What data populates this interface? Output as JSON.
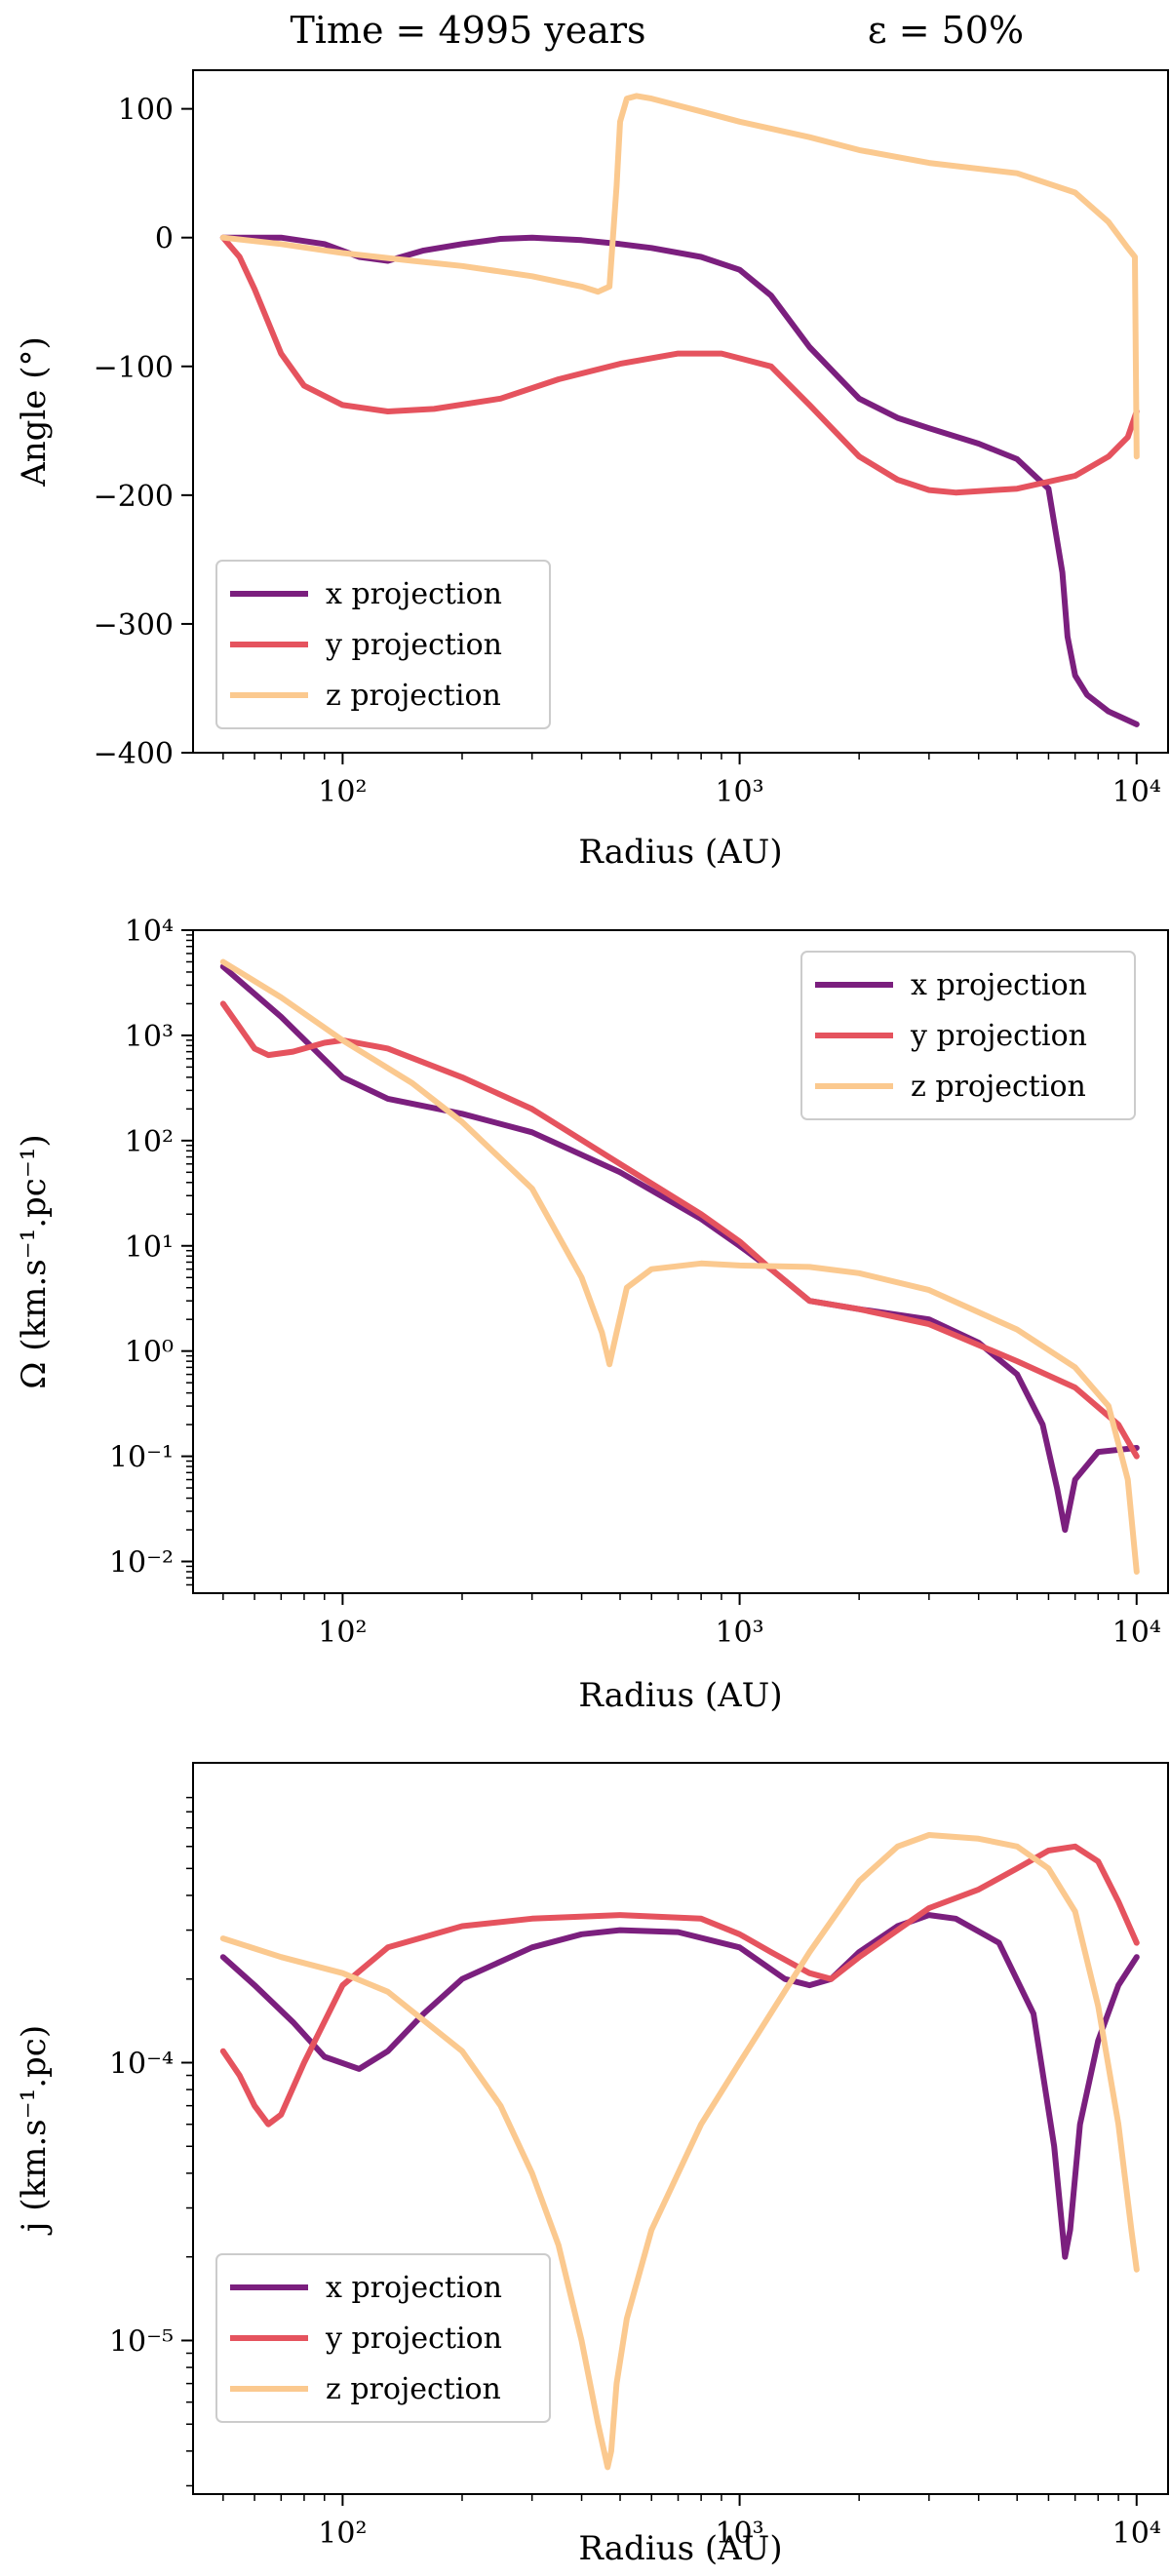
{
  "figure": {
    "title_left": "Time = 4995 years",
    "title_right": "ε = 50%"
  },
  "colors": {
    "x_projection": "#7b1f7e",
    "y_projection": "#e5535e",
    "z_projection": "#fbc98f",
    "axes": "#000000",
    "legend_border": "#cccccc"
  },
  "chart_data": [
    {
      "type": "line",
      "title": "Time = 4995 years    ε = 50%",
      "xlabel": "Radius (AU)",
      "ylabel": "Angle (°)",
      "xscale": "log",
      "yscale": "linear",
      "xlim": [
        42,
        12000
      ],
      "ylim": [
        -400,
        130
      ],
      "x_ticks": [
        {
          "value": 100,
          "label": "10²"
        },
        {
          "value": 1000,
          "label": "10³"
        },
        {
          "value": 10000,
          "label": "10⁴"
        }
      ],
      "y_ticks": [
        {
          "value": 100,
          "label": "100"
        },
        {
          "value": 0,
          "label": "0"
        },
        {
          "value": -100,
          "label": "−100"
        },
        {
          "value": -200,
          "label": "−200"
        },
        {
          "value": -300,
          "label": "−300"
        },
        {
          "value": -400,
          "label": "−400"
        }
      ],
      "legend_position": "lower-left",
      "series": [
        {
          "name": "x projection",
          "color_key": "x_projection",
          "x": [
            50,
            70,
            90,
            110,
            130,
            160,
            200,
            250,
            300,
            400,
            500,
            600,
            800,
            1000,
            1200,
            1500,
            2000,
            2500,
            3000,
            4000,
            5000,
            6000,
            6500,
            6700,
            7000,
            7500,
            8500,
            10000
          ],
          "y": [
            0,
            0,
            -5,
            -15,
            -18,
            -10,
            -5,
            -1,
            0,
            -2,
            -5,
            -8,
            -15,
            -25,
            -45,
            -85,
            -125,
            -140,
            -148,
            -160,
            -172,
            -195,
            -260,
            -310,
            -340,
            -355,
            -368,
            -378
          ]
        },
        {
          "name": "y projection",
          "color_key": "y_projection",
          "x": [
            50,
            55,
            60,
            70,
            80,
            100,
            130,
            170,
            250,
            350,
            500,
            700,
            900,
            1200,
            1500,
            2000,
            2500,
            3000,
            3500,
            5000,
            7000,
            8500,
            9500,
            10000
          ],
          "y": [
            0,
            -15,
            -40,
            -90,
            -115,
            -130,
            -135,
            -133,
            -125,
            -110,
            -98,
            -90,
            -90,
            -100,
            -130,
            -170,
            -188,
            -196,
            -198,
            -195,
            -185,
            -170,
            -155,
            -135
          ]
        },
        {
          "name": "z projection",
          "color_key": "z_projection",
          "x": [
            50,
            70,
            100,
            150,
            200,
            300,
            400,
            440,
            470,
            490,
            500,
            520,
            550,
            600,
            800,
            1000,
            1500,
            2000,
            3000,
            5000,
            7000,
            8500,
            9500,
            9900,
            10000
          ],
          "y": [
            0,
            -5,
            -12,
            -18,
            -22,
            -30,
            -38,
            -42,
            -38,
            40,
            90,
            108,
            110,
            108,
            98,
            90,
            78,
            68,
            58,
            50,
            35,
            12,
            -8,
            -15,
            -170
          ]
        }
      ]
    },
    {
      "type": "line",
      "xlabel": "Radius (AU)",
      "ylabel": "Ω (km.s⁻¹.pc⁻¹)",
      "xscale": "log",
      "yscale": "log",
      "xlim": [
        42,
        12000
      ],
      "ylim": [
        0.005,
        10000
      ],
      "x_ticks": [
        {
          "value": 100,
          "label": "10²"
        },
        {
          "value": 1000,
          "label": "10³"
        },
        {
          "value": 10000,
          "label": "10⁴"
        }
      ],
      "y_ticks": [
        {
          "value": 10000,
          "label": "10⁴"
        },
        {
          "value": 1000,
          "label": "10³"
        },
        {
          "value": 100,
          "label": "10²"
        },
        {
          "value": 10,
          "label": "10¹"
        },
        {
          "value": 1,
          "label": "10⁰"
        },
        {
          "value": 0.1,
          "label": "10⁻¹"
        },
        {
          "value": 0.01,
          "label": "10⁻²"
        }
      ],
      "legend_position": "upper-right",
      "series": [
        {
          "name": "x projection",
          "color_key": "x_projection",
          "x": [
            50,
            70,
            100,
            130,
            200,
            300,
            500,
            800,
            1000,
            1200,
            1500,
            2000,
            3000,
            4000,
            5000,
            5800,
            6300,
            6600,
            7000,
            8000,
            10000
          ],
          "y": [
            4500,
            1500,
            400,
            250,
            180,
            120,
            50,
            18,
            10,
            6,
            3,
            2.5,
            2,
            1.2,
            0.6,
            0.2,
            0.05,
            0.02,
            0.06,
            0.11,
            0.12
          ]
        },
        {
          "name": "y projection",
          "color_key": "y_projection",
          "x": [
            50,
            55,
            60,
            65,
            75,
            90,
            100,
            130,
            200,
            300,
            500,
            800,
            1000,
            1200,
            1500,
            2000,
            3000,
            5000,
            7000,
            9000,
            10000
          ],
          "y": [
            2000,
            1200,
            750,
            650,
            700,
            850,
            900,
            750,
            400,
            200,
            60,
            20,
            11,
            6,
            3,
            2.5,
            1.8,
            0.8,
            0.45,
            0.2,
            0.1
          ]
        },
        {
          "name": "z projection",
          "color_key": "z_projection",
          "x": [
            50,
            70,
            100,
            150,
            200,
            300,
            400,
            450,
            470,
            490,
            520,
            600,
            800,
            1000,
            1500,
            2000,
            3000,
            5000,
            7000,
            8500,
            9500,
            10000
          ],
          "y": [
            5000,
            2300,
            900,
            350,
            150,
            35,
            5,
            1.5,
            0.75,
            1.5,
            4,
            6,
            6.8,
            6.5,
            6.3,
            5.5,
            3.8,
            1.6,
            0.7,
            0.3,
            0.06,
            0.008
          ]
        }
      ]
    },
    {
      "type": "line",
      "xlabel": "Radius (AU)",
      "ylabel": "j (km.s⁻¹.pc)",
      "xscale": "log",
      "yscale": "log",
      "xlim": [
        42,
        12000
      ],
      "ylim": [
        2.8e-06,
        0.0012
      ],
      "x_ticks": [
        {
          "value": 100,
          "label": "10²"
        },
        {
          "value": 1000,
          "label": "10³"
        },
        {
          "value": 10000,
          "label": "10⁴"
        }
      ],
      "y_ticks": [
        {
          "value": 0.0001,
          "label": "10⁻⁴"
        },
        {
          "value": 1e-05,
          "label": "10⁻⁵"
        }
      ],
      "legend_position": "lower-left",
      "series": [
        {
          "name": "x projection",
          "color_key": "x_projection",
          "x": [
            50,
            60,
            75,
            90,
            110,
            130,
            160,
            200,
            300,
            400,
            500,
            700,
            1000,
            1300,
            1500,
            1700,
            2000,
            2500,
            3000,
            3500,
            4500,
            5500,
            6200,
            6600,
            6800,
            7200,
            8000,
            9000,
            10000
          ],
          "y": [
            0.00024,
            0.00019,
            0.00014,
            0.000105,
            9.5e-05,
            0.00011,
            0.00015,
            0.0002,
            0.00026,
            0.00029,
            0.0003,
            0.000295,
            0.00026,
            0.0002,
            0.00019,
            0.0002,
            0.00025,
            0.00031,
            0.00034,
            0.00033,
            0.00027,
            0.00015,
            5e-05,
            2e-05,
            2.5e-05,
            6e-05,
            0.00012,
            0.00019,
            0.00024
          ]
        },
        {
          "name": "y projection",
          "color_key": "y_projection",
          "x": [
            50,
            55,
            60,
            65,
            70,
            80,
            100,
            130,
            200,
            300,
            500,
            800,
            1000,
            1200,
            1500,
            1700,
            2000,
            2500,
            3000,
            4000,
            5000,
            6000,
            7000,
            8000,
            9000,
            10000
          ],
          "y": [
            0.00011,
            9e-05,
            7e-05,
            6e-05,
            6.5e-05,
            0.0001,
            0.00019,
            0.00026,
            0.00031,
            0.00033,
            0.00034,
            0.00033,
            0.00029,
            0.00025,
            0.00021,
            0.0002,
            0.00024,
            0.0003,
            0.00036,
            0.00042,
            0.0005,
            0.00058,
            0.0006,
            0.00053,
            0.00038,
            0.00027
          ]
        },
        {
          "name": "z projection",
          "color_key": "z_projection",
          "x": [
            50,
            70,
            100,
            130,
            200,
            250,
            300,
            350,
            400,
            440,
            465,
            475,
            490,
            520,
            600,
            800,
            1000,
            1500,
            2000,
            2500,
            3000,
            4000,
            5000,
            6000,
            7000,
            8000,
            9000,
            9700,
            10000
          ],
          "y": [
            0.00028,
            0.00024,
            0.00021,
            0.00018,
            0.00011,
            7e-05,
            4e-05,
            2.2e-05,
            1e-05,
            5e-06,
            3.5e-06,
            4e-06,
            7e-06,
            1.2e-05,
            2.5e-05,
            6e-05,
            0.0001,
            0.00025,
            0.00045,
            0.0006,
            0.00066,
            0.00064,
            0.0006,
            0.0005,
            0.00035,
            0.00016,
            6e-05,
            2.5e-05,
            1.8e-05
          ]
        }
      ]
    }
  ]
}
